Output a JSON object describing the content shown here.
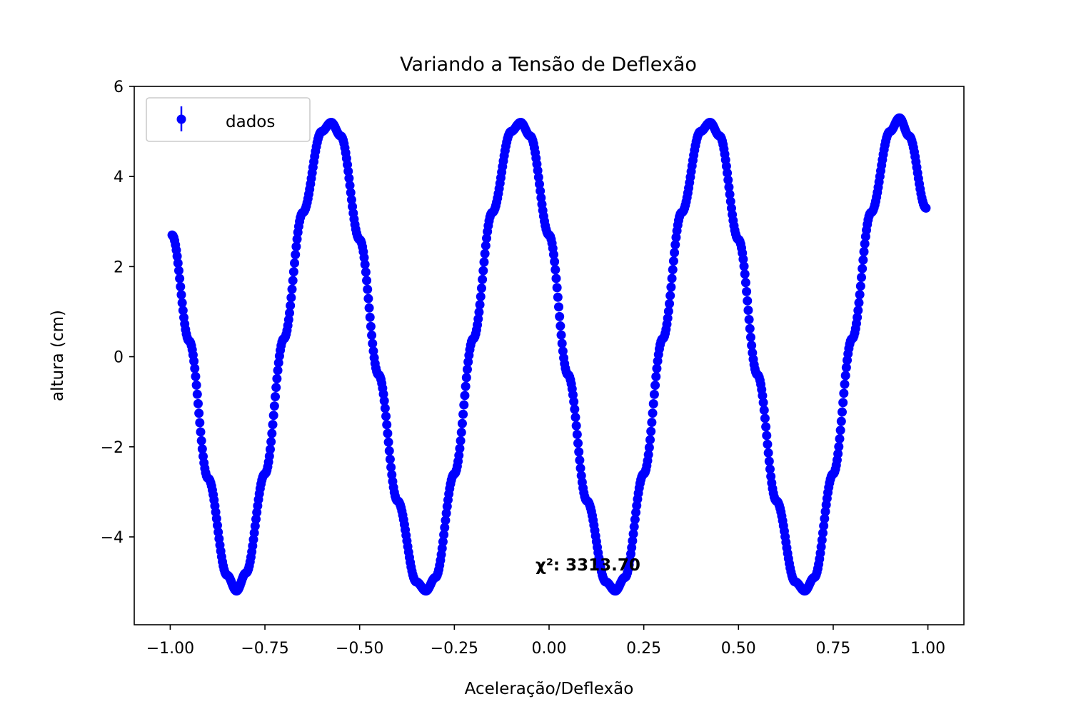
{
  "chart_data": {
    "type": "scatter",
    "title": "Variando a Tensão de Deflexão",
    "xlabel": "Aceleração/Deflexão",
    "ylabel": "altura (cm)",
    "xlim": [
      -1.095,
      1.095
    ],
    "ylim": [
      -5.95,
      6.0
    ],
    "x_ticks": [
      -1.0,
      -0.75,
      -0.5,
      -0.25,
      0.0,
      0.25,
      0.5,
      0.75,
      1.0
    ],
    "x_tick_labels": [
      "−1.00",
      "−0.75",
      "−0.50",
      "−0.25",
      "0.00",
      "0.25",
      "0.50",
      "0.75",
      "1.00"
    ],
    "y_ticks": [
      -4,
      -2,
      0,
      2,
      4,
      6
    ],
    "y_tick_labels": [
      "−4",
      "−2",
      "0",
      "2",
      "4",
      "6"
    ],
    "grid": false,
    "legend": {
      "position": "upper left",
      "entries": [
        "dados"
      ]
    },
    "series": [
      {
        "name": "dados",
        "color": "#0000ff",
        "marker": "o",
        "errorbars": true,
        "x_range": [
          -0.995,
          0.995
        ],
        "model": "y ≈ 5.2·sin(2π·2·x + 0.54)",
        "x": [
          -0.995,
          -0.95,
          -0.9,
          -0.85,
          -0.825,
          -0.8,
          -0.75,
          -0.7,
          -0.65,
          -0.6,
          -0.575,
          -0.55,
          -0.5,
          -0.45,
          -0.4,
          -0.35,
          -0.325,
          -0.3,
          -0.25,
          -0.2,
          -0.15,
          -0.1,
          -0.075,
          -0.05,
          0.0,
          0.05,
          0.1,
          0.15,
          0.175,
          0.2,
          0.25,
          0.3,
          0.35,
          0.4,
          0.425,
          0.45,
          0.5,
          0.55,
          0.6,
          0.65,
          0.675,
          0.7,
          0.75,
          0.8,
          0.85,
          0.9,
          0.925,
          0.95,
          0.995
        ],
        "y": [
          2.7,
          0.35,
          -2.7,
          -4.85,
          -5.2,
          -4.8,
          -2.6,
          0.4,
          3.2,
          5.0,
          5.2,
          4.9,
          2.6,
          -0.4,
          -3.2,
          -5.0,
          -5.2,
          -4.9,
          -2.6,
          0.4,
          3.2,
          5.0,
          5.2,
          4.9,
          2.7,
          -0.4,
          -3.2,
          -5.0,
          -5.2,
          -4.9,
          -2.6,
          0.4,
          3.2,
          5.0,
          5.2,
          4.9,
          2.6,
          -0.4,
          -3.2,
          -5.0,
          -5.2,
          -4.9,
          -2.6,
          0.4,
          3.2,
          5.0,
          5.3,
          4.9,
          3.3
        ]
      }
    ],
    "annotation": {
      "text": "χ²: 3313.70",
      "x": 0.18,
      "y": -4.7
    }
  }
}
